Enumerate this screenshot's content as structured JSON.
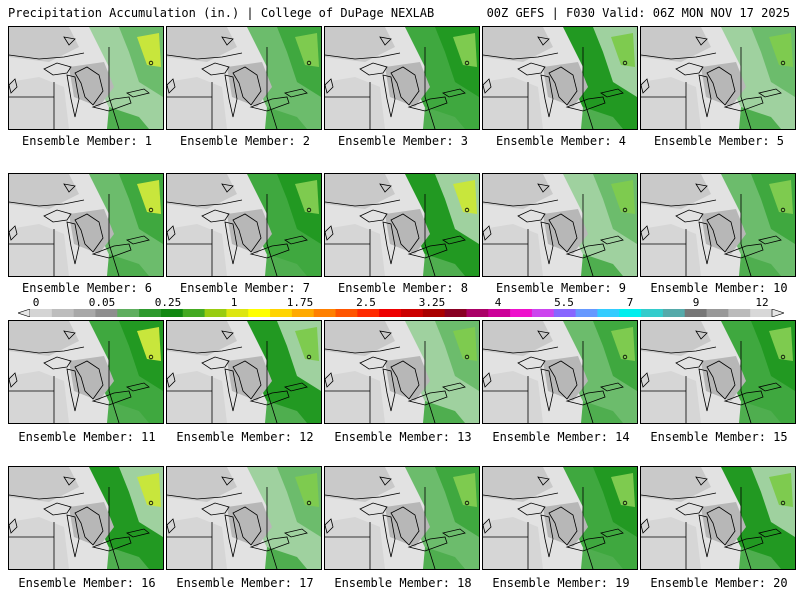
{
  "header": {
    "title_left": "Precipitation Accumulation (in.) | College of DuPage NEXLAB",
    "title_right": "00Z GEFS | F030 Valid: 06Z MON NOV 17 2025"
  },
  "panels": [
    {
      "label": "Ensemble Member: 1"
    },
    {
      "label": "Ensemble Member: 2"
    },
    {
      "label": "Ensemble Member: 3"
    },
    {
      "label": "Ensemble Member: 4"
    },
    {
      "label": "Ensemble Member: 5"
    },
    {
      "label": "Ensemble Member: 6"
    },
    {
      "label": "Ensemble Member: 7"
    },
    {
      "label": "Ensemble Member: 8"
    },
    {
      "label": "Ensemble Member: 9"
    },
    {
      "label": "Ensemble Member: 10"
    },
    {
      "label": "Ensemble Member: 11"
    },
    {
      "label": "Ensemble Member: 12"
    },
    {
      "label": "Ensemble Member: 13"
    },
    {
      "label": "Ensemble Member: 14"
    },
    {
      "label": "Ensemble Member: 15"
    },
    {
      "label": "Ensemble Member: 16"
    },
    {
      "label": "Ensemble Member: 17"
    },
    {
      "label": "Ensemble Member: 18"
    },
    {
      "label": "Ensemble Member: 19"
    },
    {
      "label": "Ensemble Member: 20"
    }
  ],
  "colorbar": {
    "labels": [
      "0",
      "0.05",
      "0.25",
      "1",
      "1.75",
      "2.5",
      "3.25",
      "4",
      "5.5",
      "7",
      "9",
      "12"
    ],
    "colors": [
      "#d4d4d4",
      "#bdbdbd",
      "#a8a8a8",
      "#8f8f8f",
      "#5fae5f",
      "#2e9a2e",
      "#118811",
      "#44aa22",
      "#99cc11",
      "#dde611",
      "#ffff00",
      "#ffd400",
      "#ffaa00",
      "#ff8000",
      "#ff5500",
      "#ff2a00",
      "#ee0000",
      "#cc0000",
      "#aa0000",
      "#880022",
      "#aa0066",
      "#cc0099",
      "#ee11cc",
      "#cc44ee",
      "#8866ff",
      "#6699ff",
      "#33ccff",
      "#00eeee",
      "#33cccc",
      "#55aaaa",
      "#777777",
      "#999999",
      "#bbbbbb",
      "#d8d8d8"
    ]
  }
}
